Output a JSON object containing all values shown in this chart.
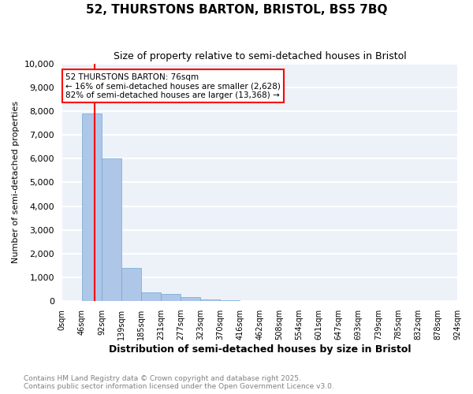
{
  "title_line1": "52, THURSTONS BARTON, BRISTOL, BS5 7BQ",
  "title_line2": "Size of property relative to semi-detached houses in Bristol",
  "xlabel": "Distribution of semi-detached houses by size in Bristol",
  "ylabel": "Number of semi-detached properties",
  "bin_labels": [
    "0sqm",
    "46sqm",
    "92sqm",
    "139sqm",
    "185sqm",
    "231sqm",
    "277sqm",
    "323sqm",
    "370sqm",
    "416sqm",
    "462sqm",
    "508sqm",
    "554sqm",
    "601sqm",
    "647sqm",
    "693sqm",
    "739sqm",
    "785sqm",
    "832sqm",
    "878sqm",
    "924sqm"
  ],
  "bar_values": [
    0,
    7900,
    6000,
    1400,
    370,
    290,
    180,
    90,
    40,
    15,
    5,
    3,
    1,
    0,
    0,
    0,
    0,
    0,
    0,
    0
  ],
  "bar_color": "#aec6e8",
  "bar_edge_color": "#6fa8d4",
  "property_line_x": 1.65,
  "annotation_text": "52 THURSTONS BARTON: 76sqm\n← 16% of semi-detached houses are smaller (2,628)\n82% of semi-detached houses are larger (13,368) →",
  "ylim": [
    0,
    10000
  ],
  "yticks": [
    0,
    1000,
    2000,
    3000,
    4000,
    5000,
    6000,
    7000,
    8000,
    9000,
    10000
  ],
  "background_color": "#edf2f9",
  "grid_color": "#ffffff",
  "footer_line1": "Contains HM Land Registry data © Crown copyright and database right 2025.",
  "footer_line2": "Contains public sector information licensed under the Open Government Licence v3.0."
}
